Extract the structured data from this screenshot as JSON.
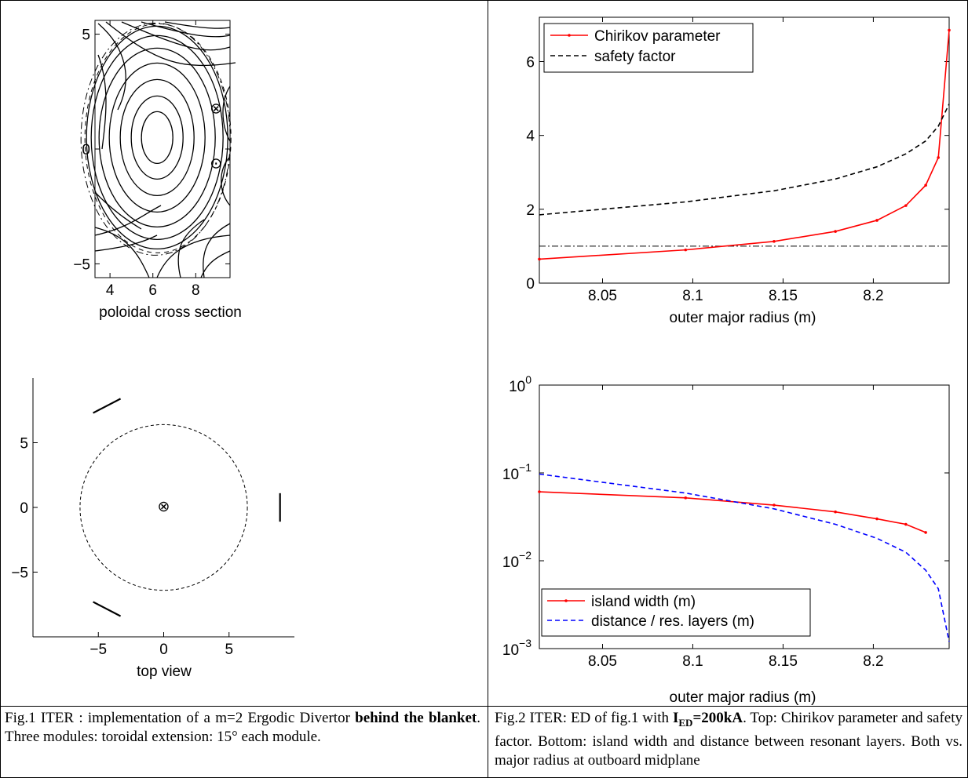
{
  "chart_data": [
    {
      "type": "contour",
      "xlabel": "poloidal cross section",
      "ylabel": "",
      "xlim": [
        3.3,
        9.6
      ],
      "ylim": [
        -5.6,
        5.6
      ],
      "xticks": [
        "4",
        "6",
        "8"
      ],
      "yticks": [
        "5",
        "0",
        "−5"
      ],
      "magnetic_axis": [
        6.2,
        0.5
      ],
      "coil_markers": [
        {
          "r": 8.95,
          "z": 1.8,
          "symbol": "⊗"
        },
        {
          "r": 8.95,
          "z": -0.6,
          "symbol": "⊙"
        }
      ]
    },
    {
      "type": "line",
      "xlabel": "top view",
      "ylabel": "",
      "xlim": [
        -10,
        10
      ],
      "ylim": [
        -10,
        10
      ],
      "xticks": [
        "−5",
        "0",
        "5"
      ],
      "yticks": [
        "5",
        "0",
        "−5"
      ],
      "circle_radius": 6.4,
      "center_marker": "⊗",
      "modules": [
        {
          "x1": 8.9,
          "y1": -1.1,
          "x2": 8.9,
          "y2": 1.1
        },
        {
          "x1": -5.4,
          "y1": 7.3,
          "x2": -3.3,
          "y2": 8.4
        },
        {
          "x1": -5.4,
          "y1": -7.3,
          "x2": -3.3,
          "y2": -8.4
        }
      ]
    },
    {
      "type": "line",
      "xlabel": "outer major radius (m)",
      "ylabel": "",
      "xlim": [
        8.015,
        8.242
      ],
      "ylim": [
        0,
        7.2
      ],
      "xticks": [
        "8.05",
        "8.1",
        "8.15",
        "8.2"
      ],
      "yticks": [
        "0",
        "2",
        "4",
        "6"
      ],
      "legend": "top-left",
      "reference_line": 1.0,
      "series": [
        {
          "name": "Chirikov parameter",
          "color": "#ff0000",
          "style": "solid-dot",
          "x": [
            8.015,
            8.096,
            8.145,
            8.179,
            8.202,
            8.218,
            8.229,
            8.236,
            8.242
          ],
          "y": [
            0.65,
            0.9,
            1.13,
            1.4,
            1.7,
            2.1,
            2.65,
            3.4,
            6.85
          ]
        },
        {
          "name": "safety factor",
          "color": "#000000",
          "style": "dashed",
          "x": [
            8.015,
            8.096,
            8.145,
            8.179,
            8.202,
            8.218,
            8.229,
            8.236,
            8.242
          ],
          "y": [
            1.85,
            2.2,
            2.5,
            2.82,
            3.15,
            3.5,
            3.85,
            4.25,
            4.85
          ]
        }
      ]
    },
    {
      "type": "line",
      "scale_y": "log",
      "xlabel": "outer major radius (m)",
      "ylabel": "",
      "xlim": [
        8.015,
        8.242
      ],
      "ylim": [
        0.001,
        1
      ],
      "xticks": [
        "8.05",
        "8.1",
        "8.15",
        "8.2"
      ],
      "yticks": [
        {
          "base": "10",
          "exp": "0"
        },
        {
          "base": "10",
          "exp": "−1"
        },
        {
          "base": "10",
          "exp": "−2"
        },
        {
          "base": "10",
          "exp": "−3"
        }
      ],
      "legend": "bottom-left",
      "series": [
        {
          "name": "island width (m)",
          "color": "#ff0000",
          "style": "solid-dot",
          "x": [
            8.015,
            8.096,
            8.145,
            8.179,
            8.202,
            8.218,
            8.229
          ],
          "y": [
            0.061,
            0.052,
            0.043,
            0.036,
            0.03,
            0.026,
            0.021
          ]
        },
        {
          "name": "distance / res. layers (m)",
          "color": "#0000ff",
          "style": "dashed",
          "x": [
            8.015,
            8.096,
            8.145,
            8.179,
            8.202,
            8.218,
            8.229,
            8.236,
            8.242
          ],
          "y": [
            0.097,
            0.059,
            0.039,
            0.026,
            0.018,
            0.0125,
            0.0078,
            0.0048,
            0.0012
          ]
        }
      ]
    }
  ],
  "caption1": {
    "pre": "Fig.1 ITER : implementation of a m=2 Ergodic Divertor ",
    "bold": "behind the blanket",
    "post": ". Three modules: toroidal extension: 15° each module."
  },
  "caption2": {
    "pre": "Fig.2 ITER: ED of fig.1 with ",
    "bold_main": "I",
    "bold_sub": "ED",
    "bold_tail": "=200kA",
    "post": ". Top: Chirikov parameter and safety factor. Bottom: island width and distance between resonant layers. Both vs. major radius at outboard midplane"
  }
}
